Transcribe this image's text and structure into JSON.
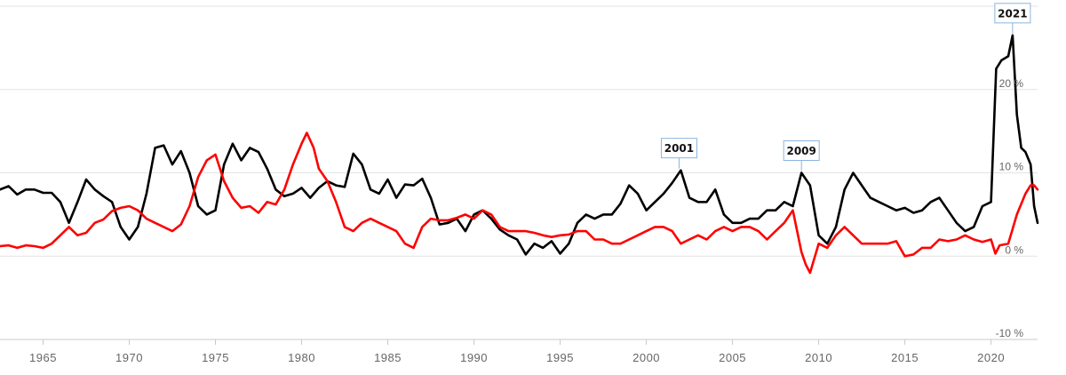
{
  "chart_data": {
    "type": "line",
    "xlim": [
      1962.5,
      2022.7
    ],
    "ylim": [
      -10,
      30
    ],
    "x_ticks": [
      1965,
      1970,
      1975,
      1980,
      1985,
      1990,
      1995,
      2000,
      2005,
      2010,
      2015,
      2020
    ],
    "y_ticks": [
      {
        "value": 20,
        "label": "20 %"
      },
      {
        "value": 10,
        "label": "10 %"
      },
      {
        "value": 0,
        "label": "0 %"
      },
      {
        "value": -10,
        "label": "-10 %"
      }
    ],
    "grid": true,
    "series": [
      {
        "color": "#000000",
        "points": [
          [
            1962.5,
            8.0
          ],
          [
            1963.0,
            8.4
          ],
          [
            1963.5,
            7.4
          ],
          [
            1964.0,
            8.0
          ],
          [
            1964.5,
            8.0
          ],
          [
            1965.0,
            7.6
          ],
          [
            1965.5,
            7.6
          ],
          [
            1966.0,
            6.5
          ],
          [
            1966.5,
            4.0
          ],
          [
            1967.0,
            6.5
          ],
          [
            1967.5,
            9.2
          ],
          [
            1968.0,
            8.0
          ],
          [
            1968.5,
            7.2
          ],
          [
            1969.0,
            6.5
          ],
          [
            1969.5,
            3.5
          ],
          [
            1970.0,
            2.0
          ],
          [
            1970.5,
            3.5
          ],
          [
            1971.0,
            7.5
          ],
          [
            1971.5,
            13.0
          ],
          [
            1972.0,
            13.3
          ],
          [
            1972.5,
            11.0
          ],
          [
            1973.0,
            12.6
          ],
          [
            1973.5,
            10.0
          ],
          [
            1974.0,
            6.0
          ],
          [
            1974.5,
            5.0
          ],
          [
            1975.0,
            5.5
          ],
          [
            1975.5,
            11.0
          ],
          [
            1976.0,
            13.5
          ],
          [
            1976.5,
            11.5
          ],
          [
            1977.0,
            13.0
          ],
          [
            1977.5,
            12.5
          ],
          [
            1978.0,
            10.5
          ],
          [
            1978.5,
            8.0
          ],
          [
            1979.0,
            7.2
          ],
          [
            1979.5,
            7.5
          ],
          [
            1980.0,
            8.2
          ],
          [
            1980.5,
            7.0
          ],
          [
            1981.0,
            8.2
          ],
          [
            1981.5,
            9.0
          ],
          [
            1982.0,
            8.5
          ],
          [
            1982.5,
            8.3
          ],
          [
            1983.0,
            12.3
          ],
          [
            1983.5,
            11.0
          ],
          [
            1984.0,
            8.0
          ],
          [
            1984.5,
            7.5
          ],
          [
            1985.0,
            9.2
          ],
          [
            1985.5,
            7.0
          ],
          [
            1986.0,
            8.6
          ],
          [
            1986.5,
            8.5
          ],
          [
            1987.0,
            9.3
          ],
          [
            1987.5,
            7.0
          ],
          [
            1988.0,
            3.8
          ],
          [
            1988.5,
            4.0
          ],
          [
            1989.0,
            4.5
          ],
          [
            1989.5,
            3.0
          ],
          [
            1990.0,
            5.0
          ],
          [
            1990.5,
            5.5
          ],
          [
            1991.0,
            4.5
          ],
          [
            1991.5,
            3.2
          ],
          [
            1992.0,
            2.5
          ],
          [
            1992.5,
            2.0
          ],
          [
            1993.0,
            0.2
          ],
          [
            1993.5,
            1.5
          ],
          [
            1994.0,
            1.0
          ],
          [
            1994.5,
            1.8
          ],
          [
            1995.0,
            0.3
          ],
          [
            1995.5,
            1.5
          ],
          [
            1996.0,
            4.0
          ],
          [
            1996.5,
            5.0
          ],
          [
            1997.0,
            4.5
          ],
          [
            1997.5,
            5.0
          ],
          [
            1998.0,
            5.0
          ],
          [
            1998.5,
            6.3
          ],
          [
            1999.0,
            8.5
          ],
          [
            1999.5,
            7.5
          ],
          [
            2000.0,
            5.5
          ],
          [
            2000.5,
            6.5
          ],
          [
            2001.0,
            7.5
          ],
          [
            2001.5,
            8.8
          ],
          [
            2002.0,
            10.3
          ],
          [
            2002.5,
            7.0
          ],
          [
            2003.0,
            6.5
          ],
          [
            2003.5,
            6.5
          ],
          [
            2004.0,
            8.0
          ],
          [
            2004.5,
            5.0
          ],
          [
            2005.0,
            4.0
          ],
          [
            2005.5,
            4.0
          ],
          [
            2006.0,
            4.5
          ],
          [
            2006.5,
            4.5
          ],
          [
            2007.0,
            5.5
          ],
          [
            2007.5,
            5.5
          ],
          [
            2008.0,
            6.5
          ],
          [
            2008.5,
            6.0
          ],
          [
            2009.0,
            10.0
          ],
          [
            2009.5,
            8.5
          ],
          [
            2010.0,
            2.5
          ],
          [
            2010.5,
            1.5
          ],
          [
            2011.0,
            3.5
          ],
          [
            2011.5,
            8.0
          ],
          [
            2012.0,
            10.0
          ],
          [
            2012.5,
            8.5
          ],
          [
            2013.0,
            7.0
          ],
          [
            2013.5,
            6.5
          ],
          [
            2014.0,
            6.0
          ],
          [
            2014.5,
            5.5
          ],
          [
            2015.0,
            5.8
          ],
          [
            2015.5,
            5.2
          ],
          [
            2016.0,
            5.5
          ],
          [
            2016.5,
            6.5
          ],
          [
            2017.0,
            7.0
          ],
          [
            2017.5,
            5.5
          ],
          [
            2018.0,
            4.0
          ],
          [
            2018.5,
            3.0
          ],
          [
            2019.0,
            3.5
          ],
          [
            2019.5,
            6.0
          ],
          [
            2020.0,
            6.5
          ],
          [
            2020.3,
            22.5
          ],
          [
            2020.6,
            23.5
          ],
          [
            2021.0,
            24.0
          ],
          [
            2021.25,
            26.5
          ],
          [
            2021.5,
            17.0
          ],
          [
            2021.75,
            13.0
          ],
          [
            2022.0,
            12.5
          ],
          [
            2022.3,
            11.0
          ],
          [
            2022.5,
            6.0
          ],
          [
            2022.7,
            4.0
          ]
        ]
      },
      {
        "color": "#ff0000",
        "points": [
          [
            1962.5,
            1.2
          ],
          [
            1963.0,
            1.3
          ],
          [
            1963.5,
            1.0
          ],
          [
            1964.0,
            1.3
          ],
          [
            1964.5,
            1.2
          ],
          [
            1965.0,
            1.0
          ],
          [
            1965.5,
            1.5
          ],
          [
            1966.0,
            2.5
          ],
          [
            1966.5,
            3.5
          ],
          [
            1967.0,
            2.5
          ],
          [
            1967.5,
            2.8
          ],
          [
            1968.0,
            4.0
          ],
          [
            1968.5,
            4.4
          ],
          [
            1969.0,
            5.4
          ],
          [
            1969.5,
            5.8
          ],
          [
            1970.0,
            6.0
          ],
          [
            1970.5,
            5.5
          ],
          [
            1971.0,
            4.5
          ],
          [
            1971.5,
            4.0
          ],
          [
            1972.0,
            3.5
          ],
          [
            1972.5,
            3.0
          ],
          [
            1973.0,
            3.8
          ],
          [
            1973.5,
            6.0
          ],
          [
            1974.0,
            9.5
          ],
          [
            1974.5,
            11.5
          ],
          [
            1975.0,
            12.2
          ],
          [
            1975.5,
            9.0
          ],
          [
            1976.0,
            7.0
          ],
          [
            1976.5,
            5.8
          ],
          [
            1977.0,
            6.0
          ],
          [
            1977.5,
            5.2
          ],
          [
            1978.0,
            6.5
          ],
          [
            1978.5,
            6.2
          ],
          [
            1979.0,
            8.0
          ],
          [
            1979.5,
            11.0
          ],
          [
            1980.0,
            13.5
          ],
          [
            1980.3,
            14.8
          ],
          [
            1980.7,
            13.0
          ],
          [
            1981.0,
            10.5
          ],
          [
            1981.5,
            9.0
          ],
          [
            1982.0,
            6.5
          ],
          [
            1982.5,
            3.5
          ],
          [
            1983.0,
            3.0
          ],
          [
            1983.5,
            4.0
          ],
          [
            1984.0,
            4.5
          ],
          [
            1984.5,
            4.0
          ],
          [
            1985.0,
            3.5
          ],
          [
            1985.5,
            3.0
          ],
          [
            1986.0,
            1.5
          ],
          [
            1986.5,
            1.0
          ],
          [
            1987.0,
            3.5
          ],
          [
            1987.5,
            4.5
          ],
          [
            1988.0,
            4.3
          ],
          [
            1988.5,
            4.3
          ],
          [
            1989.0,
            4.6
          ],
          [
            1989.5,
            5.0
          ],
          [
            1990.0,
            4.5
          ],
          [
            1990.5,
            5.5
          ],
          [
            1991.0,
            5.0
          ],
          [
            1991.5,
            3.5
          ],
          [
            1992.0,
            3.0
          ],
          [
            1992.5,
            3.0
          ],
          [
            1993.0,
            3.0
          ],
          [
            1993.5,
            2.8
          ],
          [
            1994.0,
            2.5
          ],
          [
            1994.5,
            2.3
          ],
          [
            1995.0,
            2.5
          ],
          [
            1995.5,
            2.6
          ],
          [
            1996.0,
            3.0
          ],
          [
            1996.5,
            3.0
          ],
          [
            1997.0,
            2.0
          ],
          [
            1997.5,
            2.0
          ],
          [
            1998.0,
            1.5
          ],
          [
            1998.5,
            1.5
          ],
          [
            1999.0,
            2.0
          ],
          [
            1999.5,
            2.5
          ],
          [
            2000.0,
            3.0
          ],
          [
            2000.5,
            3.5
          ],
          [
            2001.0,
            3.5
          ],
          [
            2001.5,
            3.0
          ],
          [
            2002.0,
            1.5
          ],
          [
            2002.5,
            2.0
          ],
          [
            2003.0,
            2.5
          ],
          [
            2003.5,
            2.0
          ],
          [
            2004.0,
            3.0
          ],
          [
            2004.5,
            3.5
          ],
          [
            2005.0,
            3.0
          ],
          [
            2005.5,
            3.5
          ],
          [
            2006.0,
            3.5
          ],
          [
            2006.5,
            3.0
          ],
          [
            2007.0,
            2.0
          ],
          [
            2007.5,
            3.0
          ],
          [
            2008.0,
            4.0
          ],
          [
            2008.5,
            5.5
          ],
          [
            2009.0,
            0.5
          ],
          [
            2009.25,
            -1.0
          ],
          [
            2009.5,
            -2.0
          ],
          [
            2010.0,
            1.5
          ],
          [
            2010.5,
            1.0
          ],
          [
            2011.0,
            2.5
          ],
          [
            2011.5,
            3.5
          ],
          [
            2012.0,
            2.5
          ],
          [
            2012.5,
            1.5
          ],
          [
            2013.0,
            1.5
          ],
          [
            2013.5,
            1.5
          ],
          [
            2014.0,
            1.5
          ],
          [
            2014.5,
            1.8
          ],
          [
            2015.0,
            0.0
          ],
          [
            2015.5,
            0.2
          ],
          [
            2016.0,
            1.0
          ],
          [
            2016.5,
            1.0
          ],
          [
            2017.0,
            2.0
          ],
          [
            2017.5,
            1.8
          ],
          [
            2018.0,
            2.0
          ],
          [
            2018.5,
            2.5
          ],
          [
            2019.0,
            2.0
          ],
          [
            2019.5,
            1.7
          ],
          [
            2020.0,
            2.0
          ],
          [
            2020.25,
            0.3
          ],
          [
            2020.5,
            1.3
          ],
          [
            2021.0,
            1.5
          ],
          [
            2021.5,
            5.0
          ],
          [
            2022.0,
            7.5
          ],
          [
            2022.3,
            8.5
          ],
          [
            2022.5,
            8.5
          ],
          [
            2022.7,
            8.0
          ]
        ]
      }
    ],
    "annotations": [
      {
        "label": "2001",
        "x": 2001.9,
        "y": 10.3
      },
      {
        "label": "2009",
        "x": 2009.0,
        "y": 10.0
      },
      {
        "label": "2021",
        "x": 2021.25,
        "y": 26.5
      }
    ]
  }
}
